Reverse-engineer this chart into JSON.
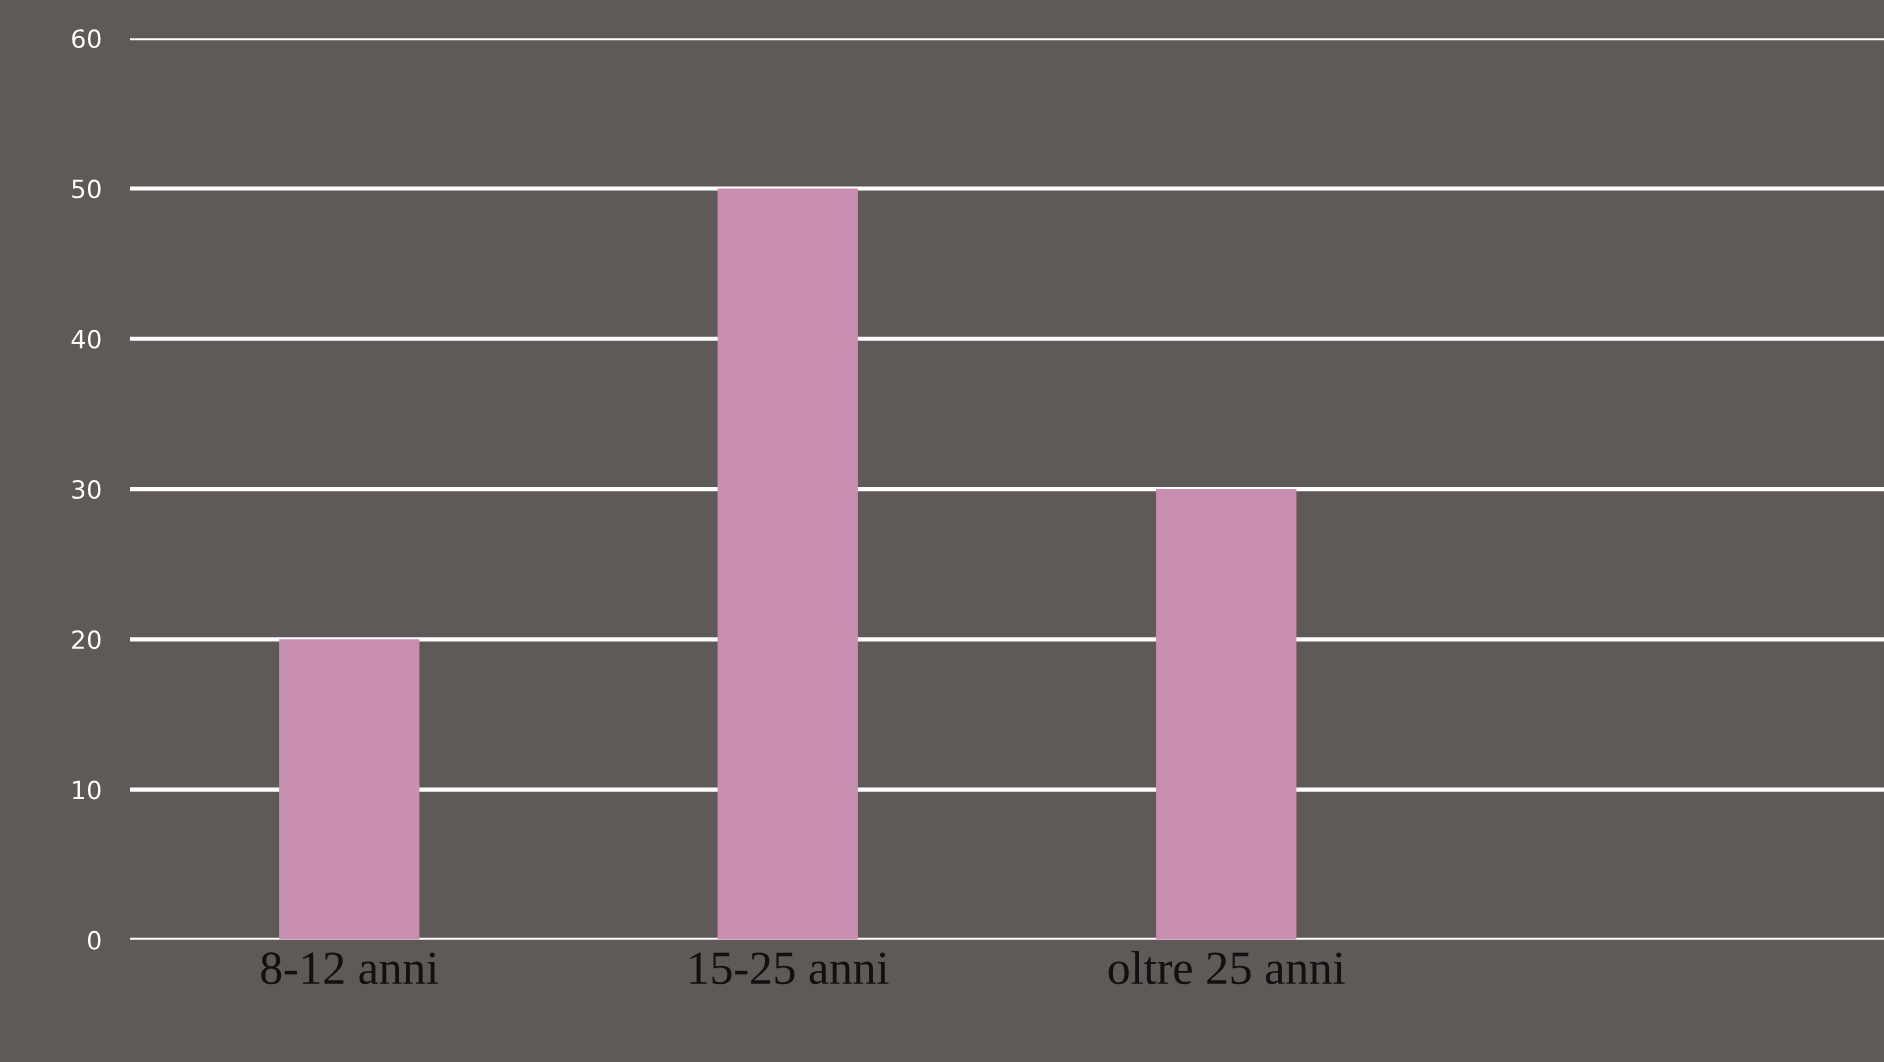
{
  "chart_data": {
    "type": "bar",
    "categories": [
      "8-12 anni",
      "15-25 anni",
      "oltre 25 anni",
      null
    ],
    "values": [
      20,
      50,
      30,
      null
    ],
    "color": "#c98fb0",
    "ylim": [
      0,
      60
    ],
    "yticks": [
      0,
      10,
      20,
      30,
      40,
      50,
      60
    ],
    "grid": "y"
  }
}
